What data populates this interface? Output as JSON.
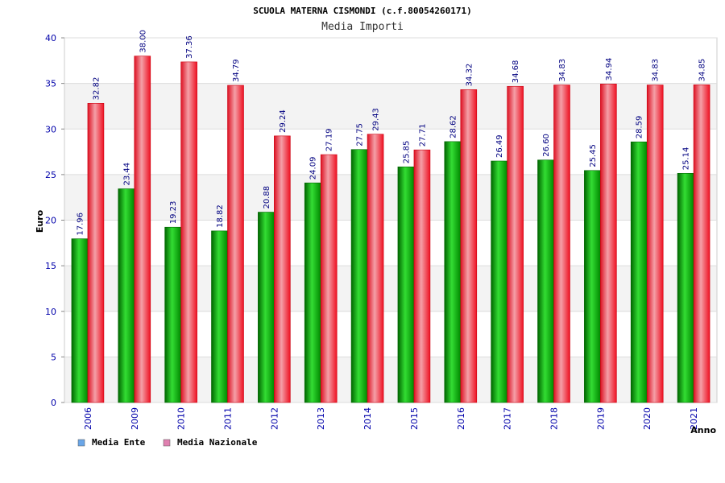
{
  "chart_data": {
    "type": "bar",
    "title": "SCUOLA MATERNA CISMONDI (c.f.80054260171)",
    "subtitle": "Media Importi",
    "xlabel": "Anno",
    "ylabel": "Euro",
    "ylim": [
      0,
      40
    ],
    "yticks": [
      "0",
      "5",
      "10",
      "15",
      "20",
      "25",
      "30",
      "35",
      "40"
    ],
    "grid": true,
    "legend_position": "bottom-left",
    "categories": [
      "2006",
      "2009",
      "2010",
      "2011",
      "2012",
      "2013",
      "2014",
      "2015",
      "2016",
      "2017",
      "2018",
      "2019",
      "2020",
      "2021"
    ],
    "series": [
      {
        "name": "Media Ente",
        "color": "#00aa00",
        "legend_color": "#6aa6e8",
        "values": [
          17.96,
          23.44,
          19.23,
          18.82,
          20.88,
          24.09,
          27.75,
          25.85,
          28.62,
          26.49,
          26.6,
          25.45,
          28.59,
          25.14
        ],
        "labels": [
          "17.96",
          "23.44",
          "19.23",
          "18.82",
          "20.88",
          "24.09",
          "27.75",
          "25.85",
          "28.62",
          "26.49",
          "26.60",
          "25.45",
          "28.59",
          "25.14"
        ]
      },
      {
        "name": "Media Nazionale",
        "color": "#ee1122",
        "legend_color": "#e080b0",
        "values": [
          32.82,
          38.0,
          37.36,
          34.79,
          29.24,
          27.19,
          29.43,
          27.71,
          34.32,
          34.68,
          34.83,
          34.94,
          34.83,
          34.85
        ],
        "labels": [
          "32.82",
          "38.00",
          "37.36",
          "34.79",
          "29.24",
          "27.19",
          "29.43",
          "27.71",
          "34.32",
          "34.68",
          "34.83",
          "34.94",
          "34.83",
          "34.85"
        ]
      }
    ]
  }
}
